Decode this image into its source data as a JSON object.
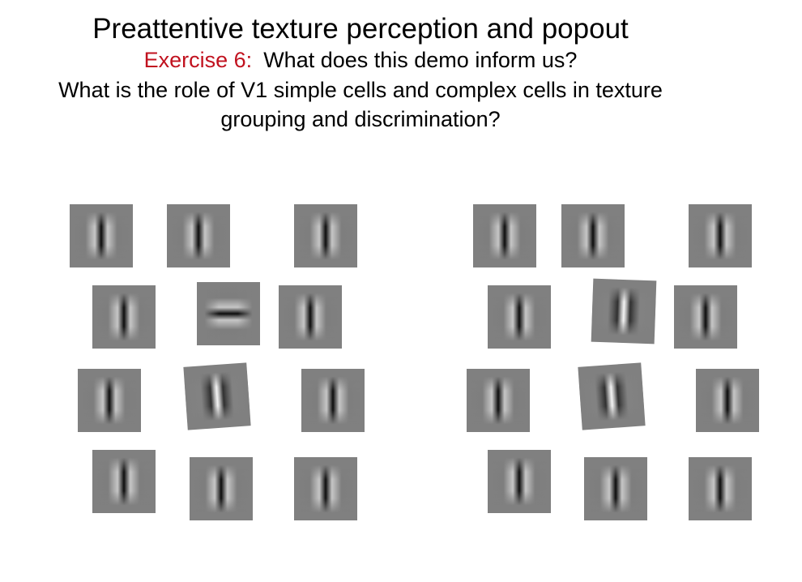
{
  "slide": {
    "title": "Preattentive texture perception and popout",
    "exercise_label": "Exercise 6:",
    "exercise_question": "What does this demo inform us?",
    "question_line_1": "What is the role of V1 simple cells and complex cells in texture",
    "question_line_2": "grouping and discrimination?"
  },
  "demo": {
    "left_group": {
      "patches": [
        {
          "orientation_deg": 0,
          "polarity": "dark-center"
        },
        {
          "orientation_deg": 0,
          "polarity": "dark-center"
        },
        {
          "orientation_deg": 0,
          "polarity": "dark-center"
        },
        {
          "orientation_deg": 0,
          "polarity": "dark-center"
        },
        {
          "orientation_deg": 90,
          "polarity": "dark-center"
        },
        {
          "orientation_deg": 0,
          "polarity": "dark-center"
        },
        {
          "orientation_deg": 0,
          "polarity": "dark-center"
        },
        {
          "orientation_deg": -4,
          "polarity": "light-center"
        },
        {
          "orientation_deg": 0,
          "polarity": "dark-center"
        },
        {
          "orientation_deg": 0,
          "polarity": "dark-center"
        },
        {
          "orientation_deg": 0,
          "polarity": "dark-center"
        },
        {
          "orientation_deg": 0,
          "polarity": "dark-center"
        }
      ]
    },
    "right_group": {
      "patches": [
        {
          "orientation_deg": 0,
          "polarity": "dark-center"
        },
        {
          "orientation_deg": 0,
          "polarity": "dark-center"
        },
        {
          "orientation_deg": 0,
          "polarity": "dark-center"
        },
        {
          "orientation_deg": 0,
          "polarity": "dark-center"
        },
        {
          "orientation_deg": 2,
          "polarity": "light-center"
        },
        {
          "orientation_deg": 0,
          "polarity": "dark-center"
        },
        {
          "orientation_deg": 0,
          "polarity": "dark-center"
        },
        {
          "orientation_deg": -4,
          "polarity": "light-center"
        },
        {
          "orientation_deg": 0,
          "polarity": "dark-center"
        },
        {
          "orientation_deg": 0,
          "polarity": "dark-center"
        },
        {
          "orientation_deg": 0,
          "polarity": "dark-center"
        },
        {
          "orientation_deg": 0,
          "polarity": "dark-center"
        }
      ]
    }
  }
}
